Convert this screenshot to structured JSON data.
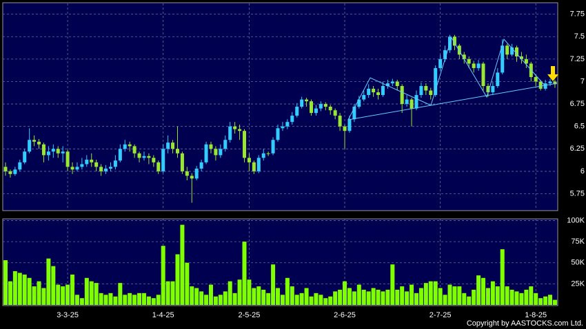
{
  "chart_data": [
    {
      "type": "candlestick",
      "categories": [
        null,
        null,
        null,
        null,
        null,
        null,
        null,
        null,
        null,
        null,
        null,
        null,
        null,
        "3-3-25",
        null,
        null,
        null,
        null,
        null,
        null,
        null,
        null,
        null,
        null,
        null,
        null,
        null,
        null,
        null,
        null,
        null,
        null,
        null,
        "1-4-25",
        null,
        null,
        null,
        null,
        null,
        null,
        null,
        null,
        null,
        null,
        null,
        null,
        null,
        null,
        null,
        null,
        null,
        "2-5-25",
        null,
        null,
        null,
        null,
        null,
        null,
        null,
        null,
        null,
        null,
        null,
        null,
        null,
        null,
        null,
        null,
        null,
        null,
        null,
        "2-6-25",
        null,
        null,
        null,
        null,
        null,
        null,
        null,
        null,
        null,
        null,
        null,
        null,
        null,
        null,
        null,
        null,
        null,
        null,
        null,
        "2-7-25",
        null,
        null,
        null,
        null,
        null,
        null,
        null,
        null,
        null,
        null,
        null,
        null,
        null,
        null,
        null,
        null,
        null,
        null,
        null,
        "1-8-25",
        null,
        null,
        null,
        null
      ],
      "open": [
        6.05,
        6.0,
        5.97,
        6.02,
        6.1,
        6.22,
        6.35,
        6.33,
        6.3,
        6.18,
        6.22,
        6.25,
        6.2,
        6.22,
        6.05,
        6.02,
        6.05,
        6.08,
        6.13,
        6.1,
        6.05,
        6.0,
        6.03,
        6.05,
        6.12,
        6.25,
        6.3,
        6.28,
        6.2,
        6.15,
        6.17,
        6.15,
        6.1,
        6.0,
        6.25,
        6.32,
        6.25,
        6.2,
        6.0,
        5.95,
        5.92,
        6.03,
        6.1,
        6.3,
        6.25,
        6.18,
        6.25,
        6.35,
        6.5,
        6.47,
        6.45,
        6.15,
        6.1,
        6.0,
        6.15,
        6.2,
        6.2,
        6.35,
        6.48,
        6.5,
        6.55,
        6.62,
        6.72,
        6.8,
        6.78,
        6.65,
        6.7,
        6.75,
        6.72,
        6.68,
        6.62,
        6.5,
        6.45,
        6.58,
        6.72,
        6.8,
        6.85,
        6.92,
        6.88,
        6.85,
        6.95,
        6.98,
        7.0,
        6.95,
        6.75,
        6.8,
        6.7,
        6.85,
        6.95,
        6.9,
        6.85,
        7.15,
        7.25,
        7.35,
        7.5,
        7.4,
        7.3,
        7.25,
        7.2,
        7.15,
        7.2,
        6.95,
        6.88,
        6.95,
        7.1,
        7.4,
        7.3,
        7.38,
        7.28,
        7.25,
        7.2,
        7.05,
        7.0,
        6.92,
        6.98,
        7.0
      ],
      "high": [
        6.1,
        6.02,
        6.05,
        6.13,
        6.25,
        6.48,
        6.4,
        6.36,
        6.32,
        6.28,
        6.3,
        6.28,
        6.28,
        6.24,
        6.1,
        6.1,
        6.15,
        6.18,
        6.2,
        6.13,
        6.08,
        6.07,
        6.1,
        6.18,
        6.3,
        6.35,
        6.33,
        6.3,
        6.22,
        6.22,
        6.2,
        6.18,
        6.12,
        6.3,
        6.4,
        6.35,
        6.5,
        6.22,
        6.05,
        5.98,
        6.06,
        6.13,
        6.33,
        6.33,
        6.28,
        6.3,
        6.4,
        6.55,
        6.55,
        6.52,
        6.47,
        6.2,
        6.12,
        6.18,
        6.25,
        6.22,
        6.38,
        6.52,
        6.55,
        6.58,
        6.66,
        6.76,
        6.83,
        6.82,
        6.8,
        6.74,
        6.78,
        6.77,
        6.74,
        6.7,
        6.65,
        6.52,
        6.62,
        6.75,
        6.84,
        6.9,
        6.97,
        6.95,
        6.92,
        7.0,
        7.02,
        7.03,
        7.02,
        6.97,
        6.85,
        6.82,
        6.9,
        6.99,
        6.98,
        6.93,
        7.18,
        7.3,
        7.4,
        7.52,
        7.52,
        7.42,
        7.33,
        7.28,
        7.23,
        7.24,
        7.22,
        6.98,
        7.0,
        7.15,
        7.47,
        7.42,
        7.42,
        7.4,
        7.33,
        7.3,
        7.22,
        7.08,
        7.02,
        7.02,
        7.03,
        7.02
      ],
      "low": [
        5.95,
        5.93,
        5.95,
        6.0,
        6.08,
        6.2,
        6.28,
        6.25,
        6.1,
        6.12,
        6.15,
        6.15,
        6.1,
        6.0,
        5.97,
        6.0,
        6.02,
        6.05,
        6.05,
        6.0,
        5.95,
        5.97,
        6.0,
        6.02,
        6.1,
        6.22,
        6.22,
        6.15,
        6.1,
        6.12,
        6.08,
        6.05,
        5.97,
        5.98,
        6.2,
        6.2,
        6.15,
        5.97,
        5.9,
        5.65,
        5.9,
        6.0,
        6.08,
        6.2,
        6.12,
        6.15,
        6.22,
        6.32,
        6.42,
        6.35,
        6.1,
        6.0,
        5.97,
        5.98,
        6.12,
        6.17,
        6.18,
        6.33,
        6.45,
        6.47,
        6.52,
        6.6,
        6.7,
        6.72,
        6.62,
        6.62,
        6.67,
        6.68,
        6.63,
        6.58,
        6.45,
        6.25,
        6.43,
        6.55,
        6.7,
        6.78,
        6.82,
        6.83,
        6.8,
        6.83,
        6.92,
        6.95,
        6.9,
        6.65,
        6.72,
        6.5,
        6.68,
        6.82,
        6.85,
        6.8,
        6.83,
        7.12,
        7.22,
        7.32,
        7.35,
        7.25,
        7.2,
        7.15,
        7.1,
        7.12,
        6.9,
        6.83,
        6.85,
        6.93,
        7.08,
        7.25,
        7.28,
        7.22,
        7.2,
        7.15,
        7.0,
        6.95,
        6.9,
        6.9,
        6.95,
        6.93
      ],
      "close": [
        6.0,
        5.97,
        6.02,
        6.1,
        6.22,
        6.35,
        6.33,
        6.3,
        6.18,
        6.22,
        6.25,
        6.2,
        6.22,
        6.05,
        6.02,
        6.05,
        6.08,
        6.13,
        6.1,
        6.05,
        6.0,
        6.03,
        6.05,
        6.12,
        6.25,
        6.3,
        6.28,
        6.2,
        6.15,
        6.17,
        6.15,
        6.1,
        6.0,
        6.25,
        6.32,
        6.25,
        6.2,
        6.0,
        5.95,
        5.92,
        6.03,
        6.1,
        6.3,
        6.25,
        6.18,
        6.25,
        6.35,
        6.5,
        6.47,
        6.45,
        6.15,
        6.1,
        6.0,
        6.15,
        6.2,
        6.2,
        6.35,
        6.48,
        6.5,
        6.55,
        6.62,
        6.72,
        6.8,
        6.78,
        6.65,
        6.7,
        6.75,
        6.72,
        6.68,
        6.62,
        6.5,
        6.45,
        6.58,
        6.72,
        6.8,
        6.85,
        6.92,
        6.88,
        6.85,
        6.95,
        6.98,
        7.0,
        6.95,
        6.75,
        6.8,
        6.7,
        6.85,
        6.95,
        6.9,
        6.85,
        7.15,
        7.25,
        7.35,
        7.5,
        7.4,
        7.3,
        7.25,
        7.2,
        7.15,
        7.2,
        6.95,
        6.88,
        6.95,
        7.1,
        7.4,
        7.3,
        7.38,
        7.28,
        7.25,
        7.2,
        7.05,
        7.0,
        6.92,
        6.98,
        7.0,
        6.97
      ],
      "up_color": "#33ccff",
      "down_color": "#99e633",
      "ylim": [
        5.57,
        7.87
      ],
      "yticks": [
        5.75,
        6,
        6.25,
        6.5,
        6.75,
        7,
        7.25,
        7.5,
        7.75
      ],
      "grid": true
    },
    {
      "type": "bar",
      "values": [
        53000,
        28000,
        40000,
        38000,
        36000,
        32000,
        22000,
        28000,
        20000,
        55000,
        46000,
        24000,
        22000,
        24000,
        36000,
        12000,
        8000,
        32000,
        28000,
        26000,
        14000,
        12000,
        14000,
        10000,
        26000,
        12000,
        14000,
        12000,
        14000,
        14000,
        10000,
        8000,
        12000,
        70000,
        28000,
        28000,
        60000,
        95000,
        50000,
        22000,
        20000,
        16000,
        12000,
        24000,
        10000,
        12000,
        16000,
        28000,
        14000,
        30000,
        75000,
        30000,
        20000,
        22000,
        18000,
        14000,
        48000,
        20000,
        12000,
        32000,
        22000,
        12000,
        14000,
        20000,
        10000,
        14000,
        12000,
        8000,
        10000,
        16000,
        18000,
        28000,
        20000,
        16000,
        24000,
        18000,
        16000,
        20000,
        18000,
        16000,
        18000,
        48000,
        18000,
        22000,
        16000,
        24000,
        14000,
        20000,
        26000,
        28000,
        28000,
        20000,
        12000,
        24000,
        22000,
        22000,
        14000,
        10000,
        18000,
        35000,
        32000,
        20000,
        28000,
        22000,
        66000,
        22000,
        18000,
        16000,
        14000,
        18000,
        22000,
        14000,
        8000,
        10000,
        12000,
        6000
      ],
      "color": "#80ff00",
      "ylim": [
        0,
        102000
      ],
      "yticks": [
        {
          "value": 25000,
          "label": "25K"
        },
        {
          "value": 50000,
          "label": "50K"
        },
        {
          "value": 75000,
          "label": "75K"
        },
        {
          "value": 100000,
          "label": "100K"
        }
      ],
      "grid": true
    }
  ],
  "copyright": "Copyright by AASTOCKS.com Ltd."
}
